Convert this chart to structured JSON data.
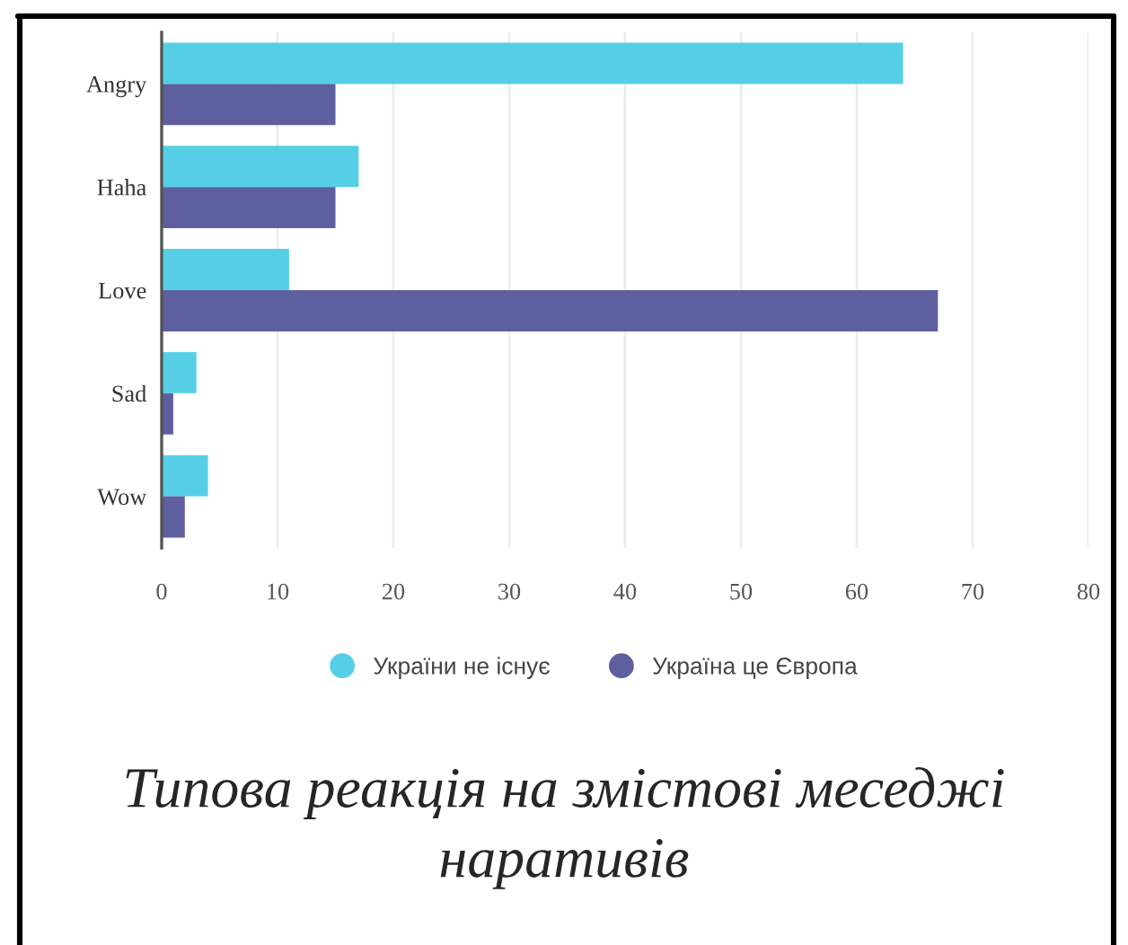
{
  "chart_data": {
    "type": "bar",
    "orientation": "horizontal",
    "title": "Типова реакція на змістові меседжі наративів",
    "categories": [
      "Angry",
      "Haha",
      "Love",
      "Sad",
      "Wow"
    ],
    "series": [
      {
        "name": "України не існує",
        "color": "#56cfe6",
        "values": [
          64,
          17,
          11,
          3,
          4
        ]
      },
      {
        "name": "Україна це Європа",
        "color": "#5d5f9f",
        "values": [
          15,
          15,
          67,
          1,
          2
        ]
      }
    ],
    "xlim": [
      0,
      80
    ],
    "xticks": [
      0,
      10,
      20,
      30,
      40,
      50,
      60,
      70,
      80
    ],
    "grid": "x",
    "legend": "bottom"
  }
}
